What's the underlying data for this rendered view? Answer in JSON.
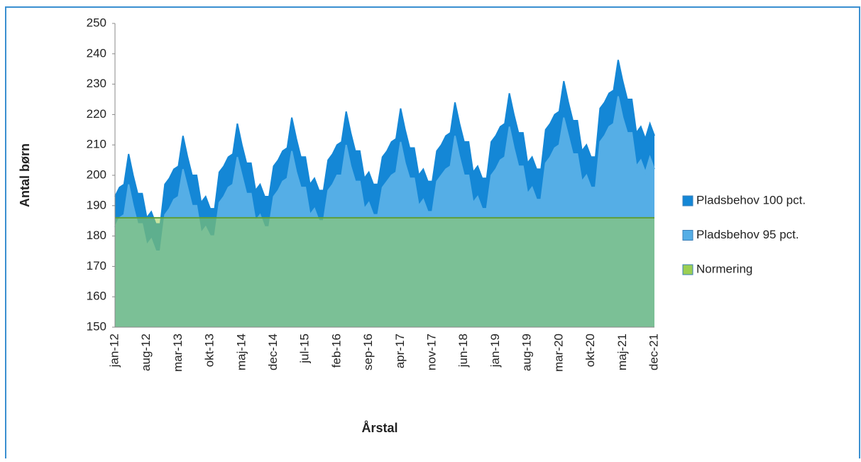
{
  "chart_data": {
    "type": "area",
    "x_label": "Årstal",
    "y_label": "Antal børn",
    "categories": [
      "jan-12",
      null,
      null,
      null,
      null,
      null,
      null,
      "aug-12",
      null,
      null,
      null,
      null,
      null,
      null,
      "mar-13",
      null,
      null,
      null,
      null,
      null,
      null,
      "okt-13",
      null,
      null,
      null,
      null,
      null,
      null,
      "maj-14",
      null,
      null,
      null,
      null,
      null,
      null,
      "dec-14",
      null,
      null,
      null,
      null,
      null,
      null,
      "jul-15",
      null,
      null,
      null,
      null,
      null,
      null,
      "feb-16",
      null,
      null,
      null,
      null,
      null,
      null,
      "sep-16",
      null,
      null,
      null,
      null,
      null,
      null,
      "apr-17",
      null,
      null,
      null,
      null,
      null,
      null,
      "nov-17",
      null,
      null,
      null,
      null,
      null,
      null,
      "jun-18",
      null,
      null,
      null,
      null,
      null,
      null,
      "jan-19",
      null,
      null,
      null,
      null,
      null,
      null,
      "aug-19",
      null,
      null,
      null,
      null,
      null,
      null,
      "mar-20",
      null,
      null,
      null,
      null,
      null,
      null,
      "okt-20",
      null,
      null,
      null,
      null,
      null,
      null,
      "maj-21",
      null,
      null,
      null,
      null,
      null,
      null,
      "dec-21"
    ],
    "series": [
      {
        "name": "Pladsbehov 100 pct.",
        "color": "#1487d6",
        "values": [
          193,
          196,
          197,
          207,
          200,
          194,
          194,
          186,
          188,
          184,
          184,
          197,
          199,
          202,
          203,
          213,
          206,
          200,
          200,
          191,
          193,
          189,
          189,
          201,
          203,
          206,
          207,
          217,
          210,
          204,
          204,
          195,
          197,
          193,
          193,
          203,
          205,
          208,
          209,
          219,
          212,
          206,
          206,
          197,
          199,
          195,
          195,
          205,
          207,
          210,
          211,
          221,
          214,
          208,
          208,
          199,
          201,
          197,
          197,
          206,
          208,
          211,
          212,
          222,
          215,
          209,
          209,
          200,
          202,
          198,
          198,
          208,
          210,
          213,
          214,
          224,
          217,
          211,
          211,
          201,
          203,
          199,
          199,
          211,
          213,
          216,
          217,
          227,
          220,
          214,
          214,
          204,
          206,
          202,
          202,
          215,
          217,
          220,
          221,
          231,
          224,
          218,
          218,
          208,
          210,
          206,
          206,
          222,
          224,
          227,
          228,
          238,
          231,
          225,
          225,
          214,
          216,
          212,
          217,
          213
        ]
      },
      {
        "name": "Pladsbehov 95 pct.",
        "color": "#55aee6",
        "values": [
          183,
          186,
          187,
          197,
          190,
          184,
          184,
          177,
          179,
          175,
          175,
          187,
          189,
          192,
          193,
          202,
          196,
          190,
          190,
          181,
          183,
          180,
          180,
          191,
          193,
          196,
          197,
          206,
          200,
          194,
          194,
          185,
          187,
          183,
          183,
          193,
          195,
          198,
          199,
          208,
          201,
          196,
          196,
          187,
          189,
          185,
          185,
          195,
          197,
          200,
          200,
          210,
          203,
          198,
          198,
          189,
          191,
          187,
          187,
          196,
          198,
          200,
          201,
          211,
          204,
          199,
          199,
          190,
          192,
          188,
          188,
          198,
          200,
          202,
          203,
          213,
          206,
          200,
          200,
          191,
          193,
          189,
          189,
          200,
          202,
          205,
          206,
          216,
          209,
          203,
          203,
          194,
          196,
          192,
          192,
          204,
          206,
          209,
          210,
          219,
          213,
          207,
          207,
          198,
          200,
          196,
          196,
          211,
          213,
          216,
          217,
          226,
          219,
          214,
          214,
          203,
          205,
          201,
          206,
          202
        ]
      },
      {
        "name": "Normering",
        "color": "#9bcf53",
        "values": [
          186,
          186,
          186,
          186,
          186,
          186,
          186,
          186,
          186,
          186,
          186,
          186,
          186,
          186,
          186,
          186,
          186,
          186,
          186,
          186,
          186,
          186,
          186,
          186,
          186,
          186,
          186,
          186,
          186,
          186,
          186,
          186,
          186,
          186,
          186,
          186,
          186,
          186,
          186,
          186,
          186,
          186,
          186,
          186,
          186,
          186,
          186,
          186,
          186,
          186,
          186,
          186,
          186,
          186,
          186,
          186,
          186,
          186,
          186,
          186,
          186,
          186,
          186,
          186,
          186,
          186,
          186,
          186,
          186,
          186,
          186,
          186,
          186,
          186,
          186,
          186,
          186,
          186,
          186,
          186,
          186,
          186,
          186,
          186,
          186,
          186,
          186,
          186,
          186,
          186,
          186,
          186,
          186,
          186,
          186,
          186,
          186,
          186,
          186,
          186,
          186,
          186,
          186,
          186,
          186,
          186,
          186,
          186,
          186,
          186,
          186,
          186,
          186,
          186,
          186,
          186,
          186,
          186,
          186,
          186
        ]
      }
    ],
    "ylim": [
      150,
      250
    ],
    "yticks": [
      150,
      160,
      170,
      180,
      190,
      200,
      210,
      220,
      230,
      240,
      250
    ]
  }
}
